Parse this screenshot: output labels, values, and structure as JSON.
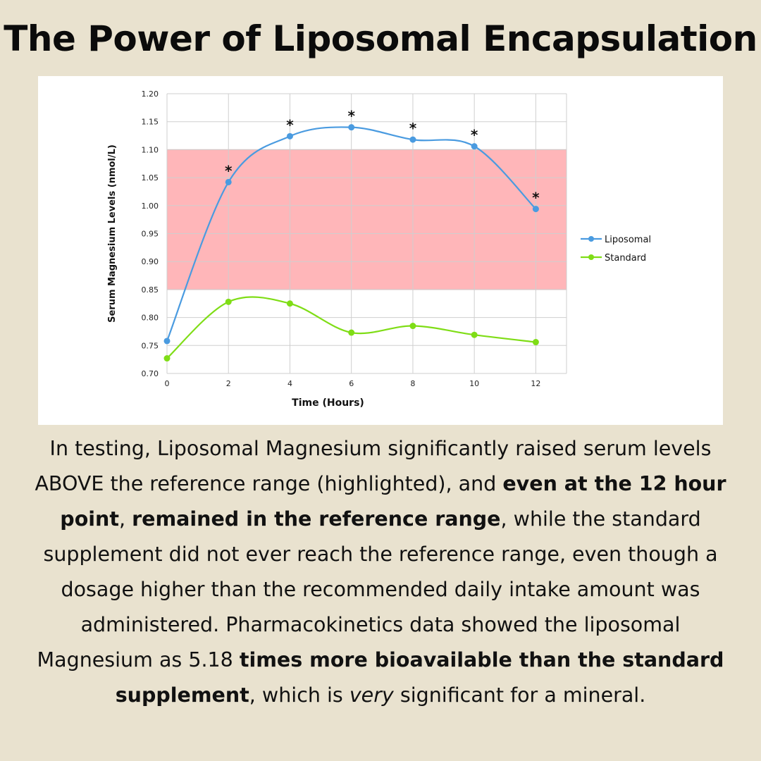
{
  "title": "The Power of Liposomal Encapsulation",
  "chart_data": {
    "type": "line",
    "title": "",
    "xlabel": "Time (Hours)",
    "ylabel": "Serum Magnesium Levels (nmol/L)",
    "x": [
      0,
      2,
      4,
      6,
      8,
      10,
      12
    ],
    "x_ticks": [
      "0",
      "2",
      "4",
      "6",
      "8",
      "10",
      "12"
    ],
    "xlim": [
      0,
      13
    ],
    "ylim": [
      0.7,
      1.2
    ],
    "y_ticks": [
      "0.70",
      "0.75",
      "0.80",
      "0.85",
      "0.90",
      "0.95",
      "1.00",
      "1.05",
      "1.10",
      "1.15",
      "1.20"
    ],
    "grid": true,
    "legend": "right",
    "reference_range": [
      0.85,
      1.1
    ],
    "reference_color": "#ffb3b6",
    "series": [
      {
        "name": "Liposomal",
        "color": "#4a9be0",
        "values": [
          0.758,
          1.042,
          1.124,
          1.14,
          1.118,
          1.106,
          0.994
        ],
        "significance_marker": "*",
        "significant_points": [
          false,
          true,
          true,
          true,
          true,
          true,
          true
        ]
      },
      {
        "name": "Standard",
        "color": "#7fdd16",
        "values": [
          0.727,
          0.828,
          0.825,
          0.773,
          0.785,
          0.769,
          0.756
        ]
      }
    ]
  },
  "body": {
    "s1": "In testing, Liposomal Magnesium significantly raised serum levels ABOVE the reference range (highlighted), and ",
    "b1": "even at the 12 hour point",
    "s2": ", ",
    "b2": "remained in the reference range",
    "s3": ", while the standard supplement did not ever reach the reference range, even though a dosage higher than the recommended daily intake amount was administered. Pharmacokinetics data showed the liposomal Magnesium as 5.18 ",
    "b3": "times more bioavailable than the standard supplement",
    "s4": ", which is ",
    "i1": "very",
    "s5": " significant for a mineral."
  }
}
